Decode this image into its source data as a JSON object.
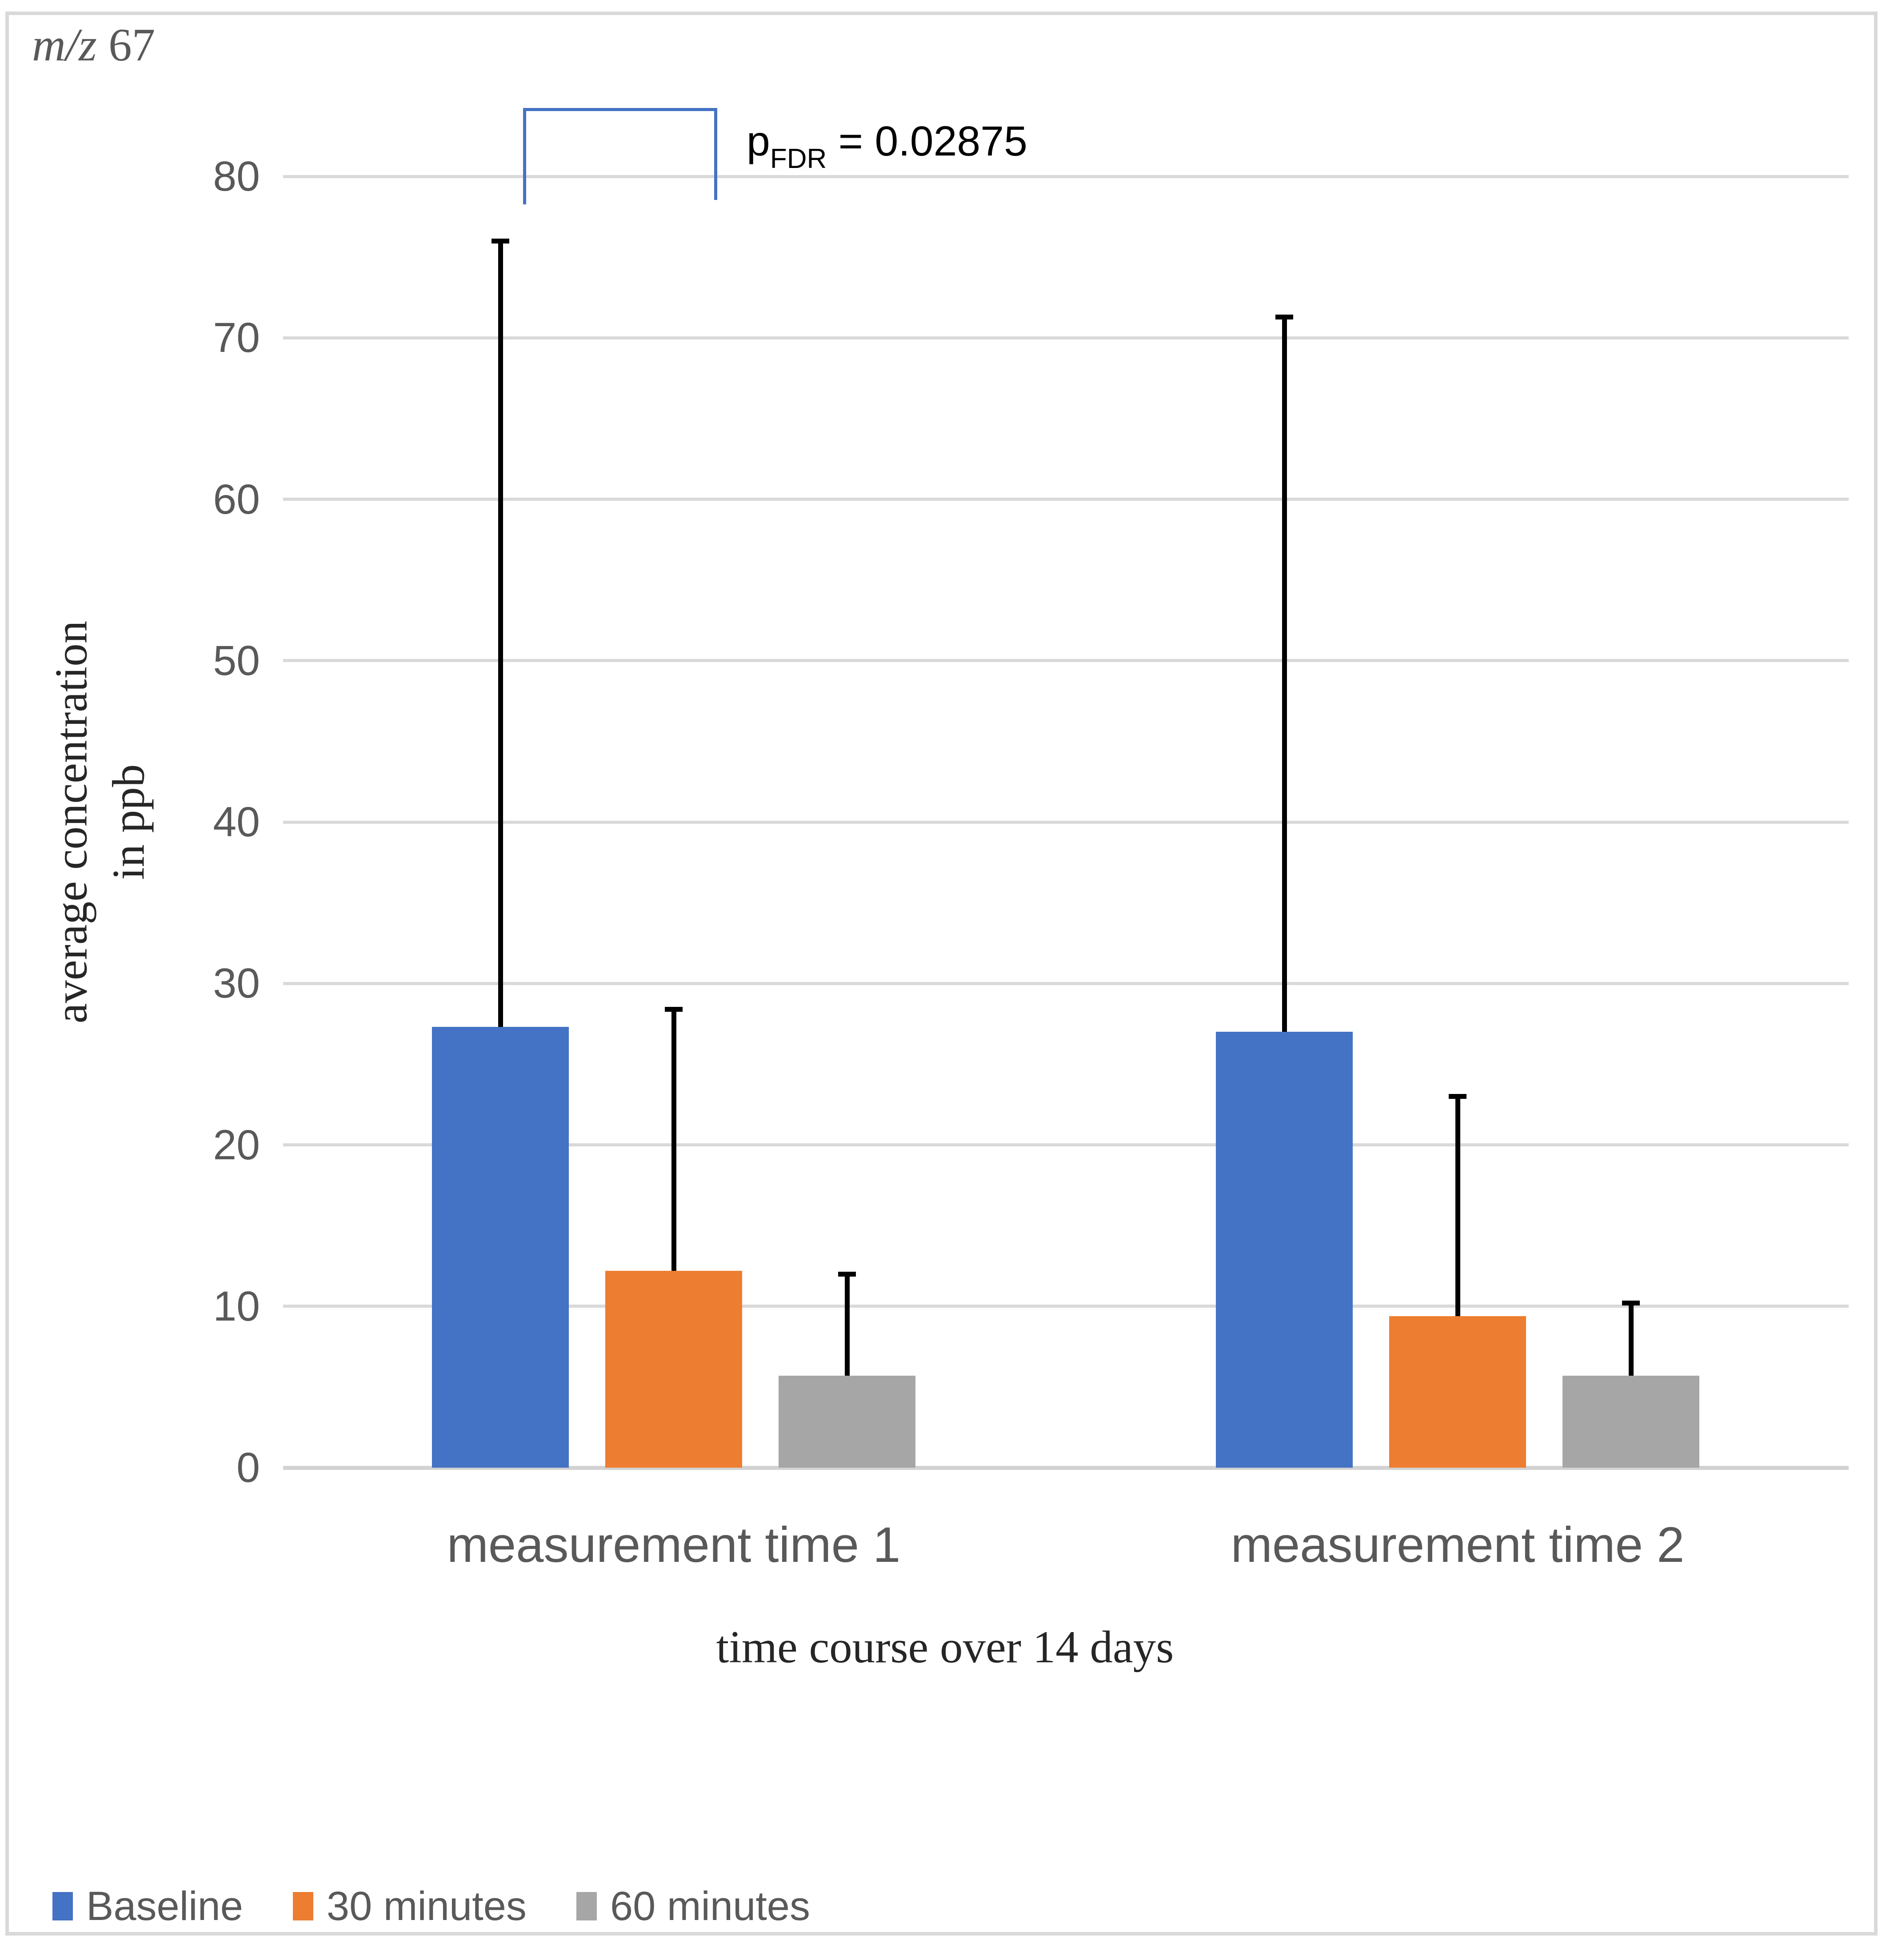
{
  "title": {
    "italic_part": "m/z",
    "number_part": " 67"
  },
  "significance": {
    "p_symbol": "p",
    "p_subscript": "FDR",
    "p_rest": " = 0.02875"
  },
  "y_axis": {
    "title_line1": "average concentration",
    "title_line2": "in ppb",
    "tick_values": [
      0,
      10,
      20,
      30,
      40,
      50,
      60,
      70,
      80
    ]
  },
  "x_axis": {
    "title": "time course over 14 days",
    "category_labels": [
      "measurement time 1",
      "measurement time 2"
    ]
  },
  "legend": {
    "items": [
      {
        "label": "Baseline",
        "color": "#4472C4"
      },
      {
        "label": "30 minutes",
        "color": "#ED7D31"
      },
      {
        "label": "60 minutes",
        "color": "#A6A6A6"
      }
    ]
  },
  "colors": {
    "gridline": "#D9D9D9",
    "error_bar": "#000000",
    "bracket": "#4472C4",
    "tick_text": "#595959",
    "serif_text": "#262626"
  },
  "chart_data": {
    "type": "bar",
    "title": "m/z 67",
    "categories": [
      "measurement time 1",
      "measurement time 2"
    ],
    "series": [
      {
        "name": "Baseline",
        "color": "#4472C4",
        "values": [
          27.3,
          27.0
        ],
        "error_top": [
          76.0,
          71.3
        ]
      },
      {
        "name": "30 minutes",
        "color": "#ED7D31",
        "values": [
          12.2,
          9.4
        ],
        "error_top": [
          28.4,
          23.0
        ]
      },
      {
        "name": "60 minutes",
        "color": "#A6A6A6",
        "values": [
          5.7,
          5.7
        ],
        "error_top": [
          12.0,
          10.2
        ]
      }
    ],
    "xlabel": "time course over 14 days",
    "ylabel": "average concentration in ppb",
    "ylim": [
      0,
      80
    ],
    "grid": "horizontal gridlines every 10",
    "legend_position": "bottom-left",
    "error_bars": "upper only, black caps",
    "annotation": {
      "text": "pFDR = 0.02875",
      "p_value": 0.02875,
      "connects": [
        "Baseline (measurement time 1)",
        "30 minutes (measurement time 1)"
      ]
    }
  }
}
